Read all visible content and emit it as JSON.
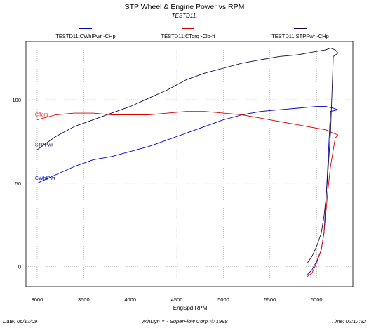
{
  "chart_data": {
    "type": "line",
    "title": "STP Wheel & Engine Power vs RPM",
    "subtitle": "TESTD11.",
    "xlabel": "EngSpd RPM",
    "ylabel": "",
    "xlim": [
      2880,
      6390
    ],
    "ylim": [
      -12,
      135
    ],
    "grid": true,
    "legend_position": "top",
    "x_ticks": [
      "3000",
      "3500",
      "4000",
      "4500",
      "5000",
      "5500",
      "6000"
    ],
    "y_ticks": [
      "100",
      "50",
      "0"
    ],
    "series": [
      {
        "name": "TESTD11:CWhlPwr -CHp",
        "inline_label": "CWhlPwr",
        "color": "#0000cc",
        "x": [
          3000,
          3200,
          3400,
          3600,
          3800,
          4000,
          4200,
          4400,
          4600,
          4800,
          5000,
          5200,
          5400,
          5600,
          5800,
          6000,
          6100,
          6180,
          6230,
          6150,
          6120,
          6100,
          6080,
          6050,
          6000,
          5950,
          5900
        ],
        "y": [
          50,
          55,
          60,
          64,
          66,
          69,
          72,
          76,
          80,
          84,
          88,
          91,
          93,
          94,
          95,
          96,
          96,
          95,
          94,
          93,
          60,
          38,
          20,
          10,
          3,
          -2,
          -5
        ]
      },
      {
        "name": "TESTD11:CTorq -Clb-ft",
        "inline_label": "CTorq",
        "color": "#dd0000",
        "x": [
          3000,
          3200,
          3400,
          3600,
          3800,
          4000,
          4200,
          4400,
          4600,
          4800,
          5000,
          5200,
          5400,
          5600,
          5800,
          6000,
          6100,
          6180,
          6230,
          6200,
          6150,
          6120,
          6100,
          6080,
          6050,
          6000,
          5950,
          5900
        ],
        "y": [
          88,
          91,
          92,
          92,
          91,
          91,
          91,
          92,
          93,
          93,
          92,
          91,
          89,
          87,
          85,
          83,
          82,
          80,
          79,
          77,
          60,
          45,
          32,
          20,
          10,
          2,
          -4,
          -6
        ]
      },
      {
        "name": "TESTD11:STPPwr -CHp",
        "inline_label": "STPPwr",
        "color": "#1a0a3c",
        "x": [
          3000,
          3200,
          3400,
          3600,
          3800,
          4000,
          4200,
          4400,
          4600,
          4800,
          5000,
          5200,
          5400,
          5600,
          5800,
          5900,
          6000,
          6100,
          6150,
          6200,
          6230,
          6180,
          6150,
          6120,
          6100,
          6080,
          6050,
          6000,
          5950,
          5900
        ],
        "y": [
          70,
          78,
          84,
          88,
          92,
          96,
          101,
          106,
          112,
          116,
          119,
          122,
          124,
          126,
          127,
          128,
          129,
          130,
          131,
          130,
          128,
          126,
          80,
          55,
          40,
          30,
          20,
          12,
          6,
          2
        ]
      }
    ]
  },
  "footer": {
    "date": "Date: 06/17/09",
    "credit": "WinDyn™ - SuperFlow Corp. © 1998",
    "time": "Time: 02:17:32"
  }
}
